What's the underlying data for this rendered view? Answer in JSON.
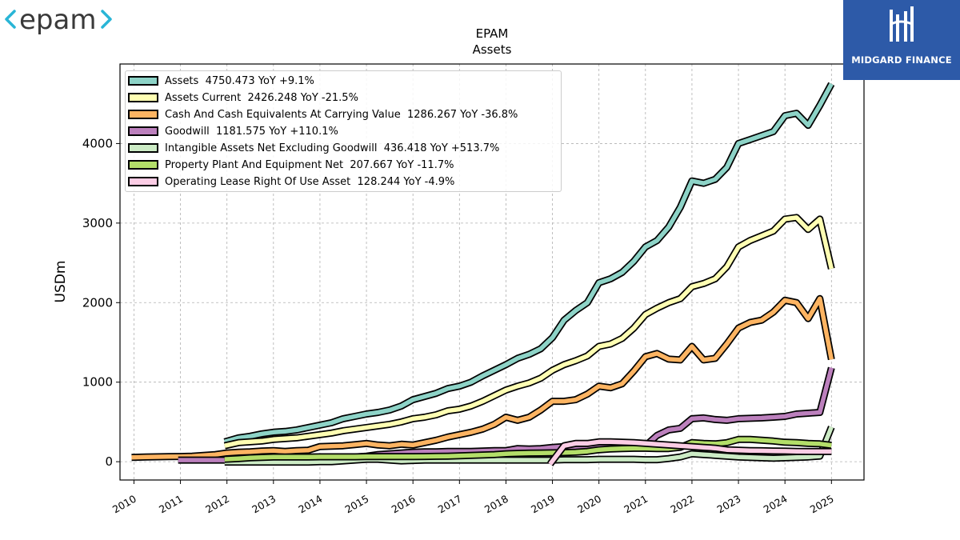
{
  "header": {
    "epam_logo_text": "epam",
    "midgard_logo_text": "MIDGARD FINANCE",
    "colors": {
      "epam_bracket": "#29b5d6",
      "epam_text": "#3a3a3a",
      "midgard_bg": "#2d5aa8"
    }
  },
  "chart_data": {
    "type": "line",
    "title": "EPAM",
    "subtitle": "Assets",
    "ylabel": "USDm",
    "xlabel": "",
    "xlim": [
      2009.7,
      2025.7
    ],
    "ylim": [
      -230,
      5000
    ],
    "yticks": [
      0,
      1000,
      2000,
      3000,
      4000
    ],
    "xticks": [
      2010,
      2011,
      2012,
      2013,
      2014,
      2015,
      2016,
      2017,
      2018,
      2019,
      2020,
      2021,
      2022,
      2023,
      2024,
      2025
    ],
    "grid": true,
    "legend_position": "top-left",
    "series": [
      {
        "name": "Assets  4750.473 YoY +9.1%",
        "color": "#8dd3c7",
        "x": [
          2011.95,
          2012.25,
          2012.5,
          2012.75,
          2013.0,
          2013.25,
          2013.5,
          2013.75,
          2014.0,
          2014.25,
          2014.5,
          2014.75,
          2015.0,
          2015.25,
          2015.5,
          2015.75,
          2016.0,
          2016.25,
          2016.5,
          2016.75,
          2017.0,
          2017.25,
          2017.5,
          2017.75,
          2018.0,
          2018.25,
          2018.5,
          2018.75,
          2019.0,
          2019.25,
          2019.5,
          2019.75,
          2020.0,
          2020.25,
          2020.5,
          2020.75,
          2021.0,
          2021.25,
          2021.5,
          2021.75,
          2022.0,
          2022.25,
          2022.5,
          2022.75,
          2023.0,
          2023.25,
          2023.5,
          2023.75,
          2024.0,
          2024.25,
          2024.5,
          2024.75,
          2025.0
        ],
        "y": [
          250,
          300,
          320,
          350,
          370,
          380,
          400,
          430,
          460,
          490,
          540,
          570,
          600,
          620,
          650,
          700,
          780,
          820,
          860,
          920,
          950,
          1000,
          1080,
          1150,
          1220,
          1300,
          1350,
          1420,
          1560,
          1780,
          1900,
          2000,
          2250,
          2300,
          2380,
          2520,
          2700,
          2780,
          2950,
          3200,
          3530,
          3500,
          3550,
          3700,
          4000,
          4050,
          4100,
          4150,
          4350,
          4380,
          4230,
          4480,
          4750
        ]
      },
      {
        "name": "Assets Current  2426.248 YoY -21.5%",
        "color": "#ffffb3",
        "x": [
          2011.95,
          2012.25,
          2012.5,
          2012.75,
          2013.0,
          2013.25,
          2013.5,
          2013.75,
          2014.0,
          2014.25,
          2014.5,
          2014.75,
          2015.0,
          2015.25,
          2015.5,
          2015.75,
          2016.0,
          2016.25,
          2016.5,
          2016.75,
          2017.0,
          2017.25,
          2017.5,
          2017.75,
          2018.0,
          2018.25,
          2018.5,
          2018.75,
          2019.0,
          2019.25,
          2019.5,
          2019.75,
          2020.0,
          2020.25,
          2020.5,
          2020.75,
          2021.0,
          2021.25,
          2021.5,
          2021.75,
          2022.0,
          2022.25,
          2022.5,
          2022.75,
          2023.0,
          2023.25,
          2023.5,
          2023.75,
          2024.0,
          2024.25,
          2024.5,
          2024.75,
          2025.0
        ],
        "y": [
          200,
          240,
          250,
          260,
          280,
          290,
          300,
          320,
          340,
          360,
          390,
          410,
          430,
          450,
          470,
          500,
          540,
          560,
          590,
          640,
          660,
          700,
          760,
          830,
          900,
          950,
          990,
          1050,
          1150,
          1220,
          1270,
          1330,
          1450,
          1480,
          1550,
          1680,
          1850,
          1930,
          2000,
          2050,
          2200,
          2240,
          2300,
          2450,
          2700,
          2780,
          2840,
          2900,
          3050,
          3070,
          2920,
          3050,
          2426
        ]
      },
      {
        "name": "Cash And Cash Equivalents At Carrying Value  1286.267 YoY -36.8%",
        "color": "#fdb462",
        "x": [
          2009.95,
          2010.25,
          2010.5,
          2010.75,
          2011.0,
          2011.25,
          2011.5,
          2011.75,
          2012.0,
          2012.25,
          2012.5,
          2012.75,
          2013.0,
          2013.25,
          2013.5,
          2013.75,
          2014.0,
          2014.25,
          2014.5,
          2014.75,
          2015.0,
          2015.25,
          2015.5,
          2015.75,
          2016.0,
          2016.25,
          2016.5,
          2016.75,
          2017.0,
          2017.25,
          2017.5,
          2017.75,
          2018.0,
          2018.25,
          2018.5,
          2018.75,
          2019.0,
          2019.25,
          2019.5,
          2019.75,
          2020.0,
          2020.25,
          2020.5,
          2020.75,
          2021.0,
          2021.25,
          2021.5,
          2021.75,
          2022.0,
          2022.25,
          2022.5,
          2022.75,
          2023.0,
          2023.25,
          2023.5,
          2023.75,
          2024.0,
          2024.25,
          2024.5,
          2024.75,
          2025.0
        ],
        "y": [
          55,
          60,
          62,
          64,
          66,
          70,
          80,
          90,
          110,
          120,
          125,
          135,
          140,
          130,
          140,
          145,
          190,
          195,
          200,
          215,
          230,
          210,
          200,
          220,
          210,
          240,
          270,
          310,
          340,
          370,
          410,
          470,
          560,
          520,
          560,
          650,
          760,
          760,
          780,
          850,
          950,
          930,
          980,
          1140,
          1320,
          1360,
          1290,
          1280,
          1450,
          1280,
          1300,
          1480,
          1680,
          1750,
          1780,
          1880,
          2030,
          2000,
          1800,
          2050,
          1286
        ]
      },
      {
        "name": "Goodwill  1181.575 YoY +110.1%",
        "color": "#bc80bd",
        "x": [
          2010.95,
          2011.25,
          2011.5,
          2011.75,
          2012.0,
          2012.25,
          2012.5,
          2012.75,
          2013.0,
          2013.25,
          2013.5,
          2013.75,
          2014.0,
          2014.25,
          2014.5,
          2014.75,
          2015.0,
          2015.25,
          2015.5,
          2015.75,
          2016.0,
          2016.25,
          2016.5,
          2016.75,
          2017.0,
          2017.25,
          2017.5,
          2017.75,
          2018.0,
          2018.25,
          2018.5,
          2018.75,
          2019.0,
          2019.25,
          2019.5,
          2019.75,
          2020.0,
          2020.25,
          2020.5,
          2020.75,
          2021.0,
          2021.25,
          2021.5,
          2021.75,
          2022.0,
          2022.25,
          2022.5,
          2022.75,
          2023.0,
          2023.25,
          2023.5,
          2023.75,
          2024.0,
          2024.25,
          2024.5,
          2024.75,
          2025.0
        ],
        "y": [
          20,
          20,
          20,
          20,
          20,
          20,
          22,
          22,
          24,
          24,
          24,
          26,
          30,
          40,
          50,
          60,
          70,
          90,
          100,
          110,
          120,
          125,
          125,
          130,
          130,
          130,
          135,
          140,
          140,
          165,
          160,
          165,
          180,
          190,
          190,
          190,
          195,
          195,
          200,
          200,
          200,
          330,
          400,
          420,
          540,
          550,
          530,
          520,
          540,
          545,
          550,
          560,
          570,
          600,
          610,
          620,
          1181
        ]
      },
      {
        "name": "Intangible Assets Net Excluding Goodwill  436.418 YoY +513.7%",
        "color": "#ccebc5",
        "x": [
          2011.95,
          2012.25,
          2012.5,
          2012.75,
          2013.0,
          2013.25,
          2013.5,
          2013.75,
          2014.0,
          2014.25,
          2014.5,
          2014.75,
          2015.0,
          2015.25,
          2015.5,
          2015.75,
          2016.0,
          2016.25,
          2016.5,
          2016.75,
          2017.0,
          2017.25,
          2017.5,
          2017.75,
          2018.0,
          2018.25,
          2018.5,
          2018.75,
          2019.0,
          2019.25,
          2019.5,
          2019.75,
          2020.0,
          2020.25,
          2020.5,
          2020.75,
          2021.0,
          2021.25,
          2021.5,
          2021.75,
          2022.0,
          2022.25,
          2022.5,
          2022.75,
          2023.0,
          2023.25,
          2023.5,
          2023.75,
          2024.0,
          2024.25,
          2024.5,
          2024.75,
          2025.0
        ],
        "y": [
          -5,
          -5,
          -5,
          -5,
          -5,
          -5,
          -5,
          -5,
          0,
          0,
          10,
          20,
          30,
          30,
          20,
          10,
          15,
          20,
          20,
          20,
          20,
          20,
          20,
          20,
          20,
          20,
          20,
          20,
          20,
          25,
          25,
          25,
          30,
          30,
          30,
          30,
          25,
          25,
          40,
          60,
          100,
          90,
          80,
          70,
          60,
          55,
          50,
          45,
          50,
          55,
          60,
          71,
          436
        ]
      },
      {
        "name": "Property Plant And Equipment Net  207.667 YoY -11.7%",
        "color": "#b3de69",
        "x": [
          2011.95,
          2012.25,
          2012.5,
          2012.75,
          2013.0,
          2013.25,
          2013.5,
          2013.75,
          2014.0,
          2014.25,
          2014.5,
          2014.75,
          2015.0,
          2015.25,
          2015.5,
          2015.75,
          2016.0,
          2016.25,
          2016.5,
          2016.75,
          2017.0,
          2017.25,
          2017.5,
          2017.75,
          2018.0,
          2018.25,
          2018.5,
          2018.75,
          2019.0,
          2019.25,
          2019.5,
          2019.75,
          2020.0,
          2020.25,
          2020.5,
          2020.75,
          2021.0,
          2021.25,
          2021.5,
          2021.75,
          2022.0,
          2022.25,
          2022.5,
          2022.75,
          2023.0,
          2023.25,
          2023.5,
          2023.75,
          2024.0,
          2024.25,
          2024.5,
          2024.75,
          2025.0
        ],
        "y": [
          30,
          40,
          50,
          55,
          60,
          60,
          60,
          60,
          62,
          62,
          62,
          62,
          64,
          64,
          65,
          65,
          65,
          66,
          68,
          70,
          75,
          80,
          85,
          90,
          100,
          105,
          108,
          110,
          112,
          115,
          120,
          130,
          150,
          160,
          165,
          168,
          168,
          165,
          165,
          180,
          240,
          230,
          225,
          240,
          280,
          280,
          270,
          260,
          245,
          240,
          230,
          225,
          207
        ]
      },
      {
        "name": "Operating Lease Right Of Use Asset  128.244 YoY -4.9%",
        "color": "#fccde5",
        "x": [
          2018.95,
          2019.25,
          2019.5,
          2019.75,
          2020.0,
          2020.25,
          2020.5,
          2020.75,
          2021.0,
          2021.25,
          2021.5,
          2021.75,
          2022.0,
          2022.25,
          2022.5,
          2022.75,
          2023.0,
          2023.25,
          2023.5,
          2023.75,
          2024.0,
          2024.25,
          2024.5,
          2024.75,
          2025.0
        ],
        "y": [
          -30,
          200,
          230,
          230,
          250,
          250,
          245,
          240,
          230,
          220,
          210,
          200,
          190,
          180,
          170,
          150,
          145,
          140,
          138,
          135,
          133,
          130,
          128,
          128,
          128
        ]
      }
    ]
  }
}
